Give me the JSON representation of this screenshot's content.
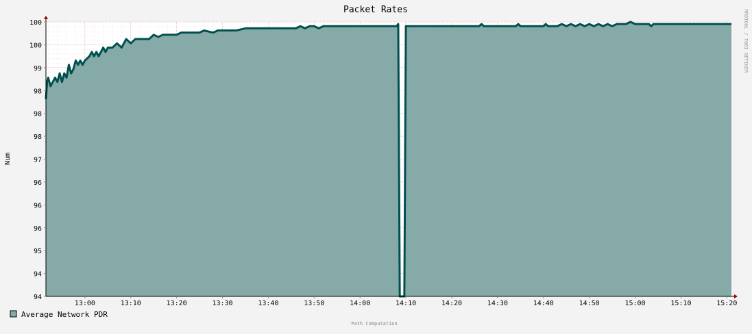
{
  "chart_data": {
    "type": "area",
    "title": "Packet Rates",
    "xlabel": "",
    "ylabel": "Num",
    "yticks": [
      "94",
      "94",
      "95",
      "96",
      "96",
      "96",
      "97",
      "98",
      "98",
      "98",
      "99",
      "100",
      "100"
    ],
    "xticks": [
      "13:00",
      "13:10",
      "13:20",
      "13:30",
      "13:40",
      "13:50",
      "14:00",
      "14:10",
      "14:20",
      "14:30",
      "14:40",
      "14:50",
      "15:00",
      "15:10",
      "15:20"
    ],
    "xlim": [
      "12:51:30",
      "15:21:00"
    ],
    "grid": true,
    "legend_position": "bottom-left",
    "series": [
      {
        "name": "Average Network PDR",
        "fill_color": "#86aaa8",
        "line_color": "#00504f",
        "x": [
          "12:51:30",
          "12:51:45",
          "12:52:00",
          "12:52:30",
          "12:53:00",
          "12:53:30",
          "12:54:00",
          "12:54:30",
          "12:55:00",
          "12:55:30",
          "12:56:00",
          "12:56:30",
          "12:57:00",
          "12:57:30",
          "12:58:00",
          "12:58:30",
          "12:59:00",
          "12:59:30",
          "13:00:00",
          "13:01:00",
          "13:01:30",
          "13:02:00",
          "13:02:30",
          "13:03:00",
          "13:03:30",
          "13:04:00",
          "13:04:30",
          "13:05:00",
          "13:06:00",
          "13:07:00",
          "13:08:00",
          "13:09:00",
          "13:10:00",
          "13:11:00",
          "13:12:00",
          "13:14:00",
          "13:15:00",
          "13:16:00",
          "13:17:00",
          "13:18:00",
          "13:20:00",
          "13:21:00",
          "13:23:00",
          "13:25:00",
          "13:26:00",
          "13:28:00",
          "13:29:00",
          "13:31:00",
          "13:33:00",
          "13:35:00",
          "13:40:00",
          "13:46:00",
          "13:47:00",
          "13:48:00",
          "13:49:00",
          "13:50:00",
          "13:51:00",
          "13:52:00",
          "13:53:00",
          "13:55:00",
          "13:58:00",
          "13:59:00",
          "14:08:00",
          "14:08:20",
          "14:08:40",
          "14:09:00",
          "14:09:20",
          "14:09:40",
          "14:10:00",
          "14:26:00",
          "14:26:30",
          "14:27:00",
          "14:34:00",
          "14:34:30",
          "14:35:00",
          "14:40:00",
          "14:40:30",
          "14:41:00",
          "14:43:00",
          "14:44:00",
          "14:45:00",
          "14:46:00",
          "14:47:00",
          "14:48:00",
          "14:49:00",
          "14:50:00",
          "14:51:00",
          "14:52:00",
          "14:53:00",
          "14:54:00",
          "14:55:00",
          "14:56:00",
          "14:57:00",
          "14:58:00",
          "14:59:00",
          "15:00:00",
          "15:02:00",
          "15:03:00",
          "15:03:30",
          "15:04:00",
          "15:21:00"
        ],
        "y": [
          98.6,
          99.0,
          99.1,
          98.9,
          99.0,
          99.1,
          99.0,
          99.2,
          99.0,
          99.2,
          99.1,
          99.4,
          99.2,
          99.3,
          99.5,
          99.4,
          99.5,
          99.4,
          99.5,
          99.6,
          99.7,
          99.6,
          99.7,
          99.6,
          99.7,
          99.8,
          99.7,
          99.8,
          99.8,
          99.9,
          99.8,
          100.0,
          99.9,
          100.0,
          100.0,
          100.0,
          100.1,
          100.05,
          100.1,
          100.1,
          100.1,
          100.15,
          100.15,
          100.15,
          100.2,
          100.15,
          100.2,
          100.2,
          100.2,
          100.25,
          100.25,
          100.25,
          100.3,
          100.25,
          100.3,
          100.3,
          100.25,
          100.3,
          100.3,
          100.3,
          100.3,
          100.3,
          100.3,
          100.35,
          94.0,
          94.0,
          94.0,
          94.0,
          100.3,
          100.3,
          100.35,
          100.3,
          100.3,
          100.35,
          100.3,
          100.3,
          100.35,
          100.3,
          100.3,
          100.35,
          100.3,
          100.35,
          100.3,
          100.35,
          100.3,
          100.35,
          100.3,
          100.35,
          100.3,
          100.35,
          100.3,
          100.35,
          100.35,
          100.35,
          100.4,
          100.35,
          100.35,
          100.35,
          100.3,
          100.35,
          100.35
        ]
      }
    ]
  },
  "watermark": "RRDTOOL / TOBI OETIKER",
  "footer": "Path Computation"
}
